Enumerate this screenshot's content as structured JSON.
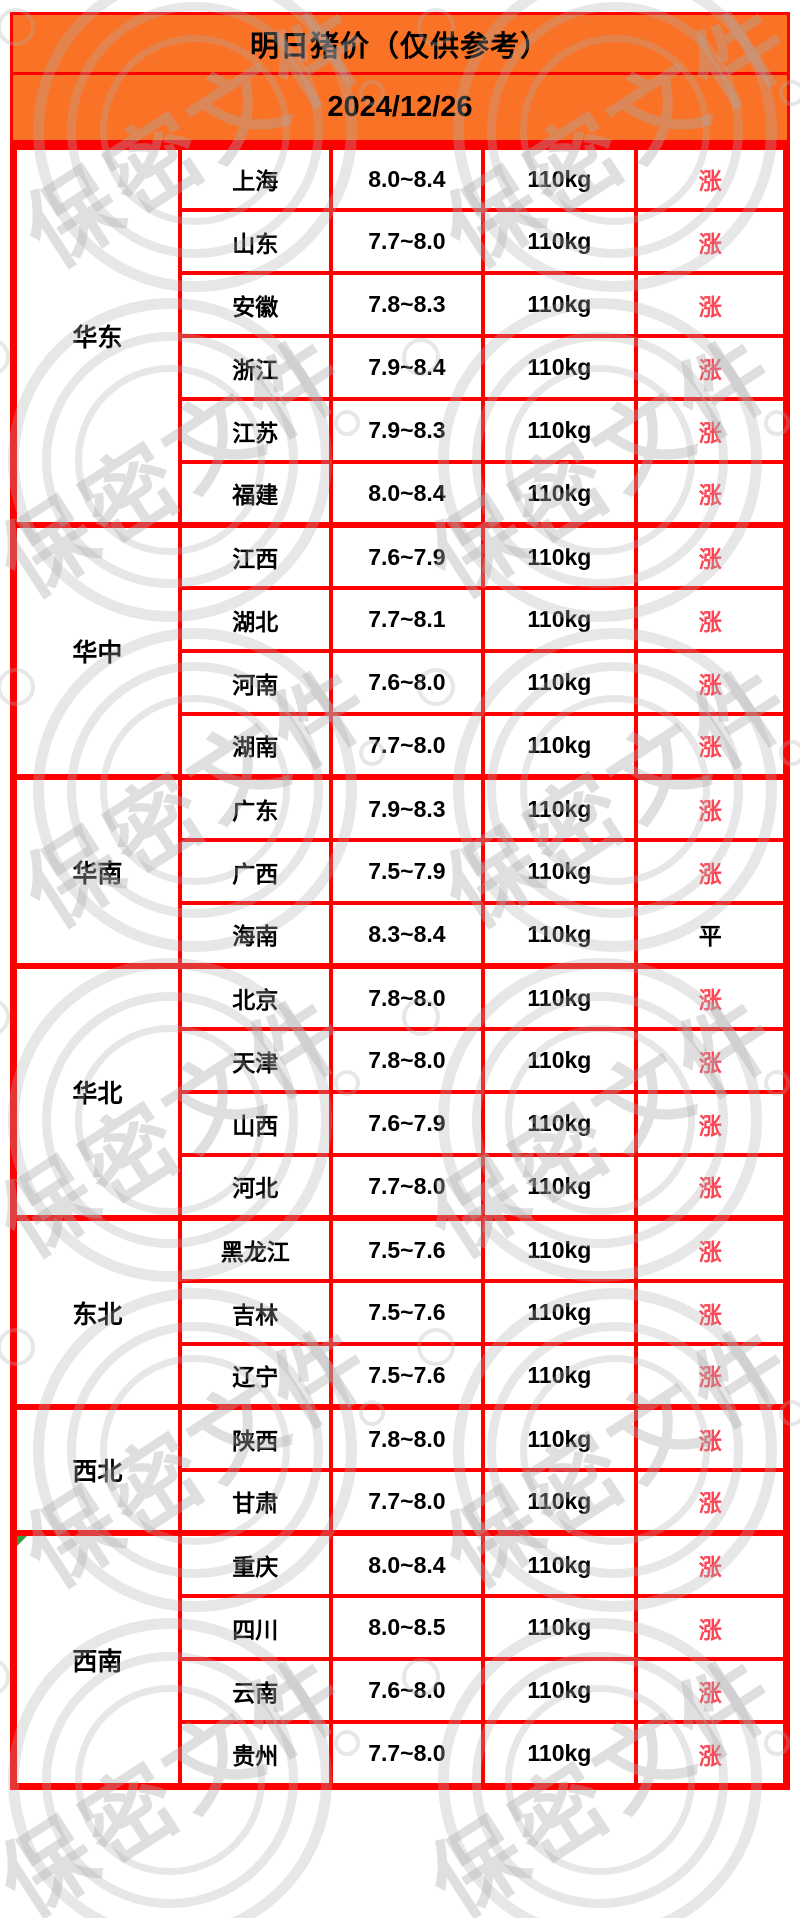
{
  "header": {
    "title": "明日猪价（仅供参考）",
    "date": "2024/12/26"
  },
  "watermark": {
    "text": "保密文件"
  },
  "legend": {
    "rise": "涨",
    "flat": "平"
  },
  "colors": {
    "header_bg": "#F97226",
    "border_red": "#FE0000",
    "rise_red": "#FB4654",
    "text_black": "#000000",
    "corner_green": "#2E9E3E"
  },
  "regions": [
    {
      "name": "华东",
      "rows": [
        {
          "province": "上海",
          "price": "8.0~8.4",
          "weight": "110kg",
          "trend": "涨"
        },
        {
          "province": "山东",
          "price": "7.7~8.0",
          "weight": "110kg",
          "trend": "涨"
        },
        {
          "province": "安徽",
          "price": "7.8~8.3",
          "weight": "110kg",
          "trend": "涨"
        },
        {
          "province": "浙江",
          "price": "7.9~8.4",
          "weight": "110kg",
          "trend": "涨"
        },
        {
          "province": "江苏",
          "price": "7.9~8.3",
          "weight": "110kg",
          "trend": "涨"
        },
        {
          "province": "福建",
          "price": "8.0~8.4",
          "weight": "110kg",
          "trend": "涨"
        }
      ]
    },
    {
      "name": "华中",
      "rows": [
        {
          "province": "江西",
          "price": "7.6~7.9",
          "weight": "110kg",
          "trend": "涨"
        },
        {
          "province": "湖北",
          "price": "7.7~8.1",
          "weight": "110kg",
          "trend": "涨"
        },
        {
          "province": "河南",
          "price": "7.6~8.0",
          "weight": "110kg",
          "trend": "涨"
        },
        {
          "province": "湖南",
          "price": "7.7~8.0",
          "weight": "110kg",
          "trend": "涨"
        }
      ]
    },
    {
      "name": "华南",
      "rows": [
        {
          "province": "广东",
          "price": "7.9~8.3",
          "weight": "110kg",
          "trend": "涨"
        },
        {
          "province": "广西",
          "price": "7.5~7.9",
          "weight": "110kg",
          "trend": "涨"
        },
        {
          "province": "海南",
          "price": "8.3~8.4",
          "weight": "110kg",
          "trend": "平"
        }
      ]
    },
    {
      "name": "华北",
      "rows": [
        {
          "province": "北京",
          "price": "7.8~8.0",
          "weight": "110kg",
          "trend": "涨"
        },
        {
          "province": "天津",
          "price": "7.8~8.0",
          "weight": "110kg",
          "trend": "涨"
        },
        {
          "province": "山西",
          "price": "7.6~7.9",
          "weight": "110kg",
          "trend": "涨"
        },
        {
          "province": "河北",
          "price": "7.7~8.0",
          "weight": "110kg",
          "trend": "涨"
        }
      ]
    },
    {
      "name": "东北",
      "rows": [
        {
          "province": "黑龙江",
          "price": "7.5~7.6",
          "weight": "110kg",
          "trend": "涨"
        },
        {
          "province": "吉林",
          "price": "7.5~7.6",
          "weight": "110kg",
          "trend": "涨"
        },
        {
          "province": "辽宁",
          "price": "7.5~7.6",
          "weight": "110kg",
          "trend": "涨"
        }
      ]
    },
    {
      "name": "西北",
      "rows": [
        {
          "province": "陕西",
          "price": "7.8~8.0",
          "weight": "110kg",
          "trend": "涨"
        },
        {
          "province": "甘肃",
          "price": "7.7~8.0",
          "weight": "110kg",
          "trend": "涨"
        }
      ]
    },
    {
      "name": "西南",
      "corner_mark": true,
      "rows": [
        {
          "province": "重庆",
          "price": "8.0~8.4",
          "weight": "110kg",
          "trend": "涨"
        },
        {
          "province": "四川",
          "price": "8.0~8.5",
          "weight": "110kg",
          "trend": "涨"
        },
        {
          "province": "云南",
          "price": "7.6~8.0",
          "weight": "110kg",
          "trend": "涨"
        },
        {
          "province": "贵州",
          "price": "7.7~8.0",
          "weight": "110kg",
          "trend": "涨"
        }
      ]
    }
  ]
}
